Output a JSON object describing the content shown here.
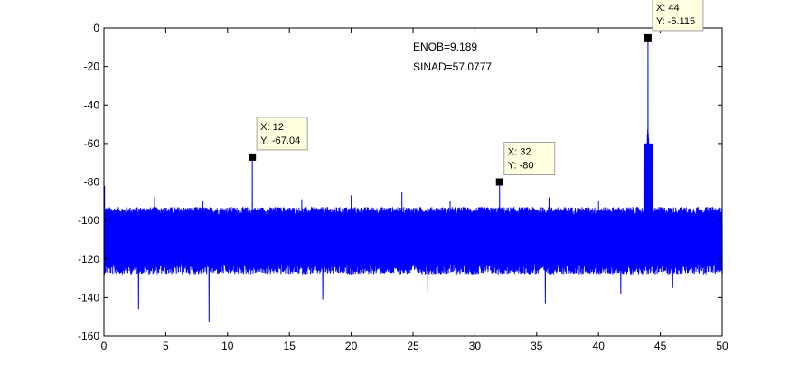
{
  "chart_data": {
    "type": "line",
    "xlim": [
      0,
      50
    ],
    "ylim": [
      -160,
      0
    ],
    "xticks": [
      0,
      5,
      10,
      15,
      20,
      25,
      30,
      35,
      40,
      45,
      50
    ],
    "yticks": [
      0,
      -20,
      -40,
      -60,
      -80,
      -100,
      -120,
      -140,
      -160
    ],
    "grid": false,
    "line_color": "#0000ff",
    "noise_floor": {
      "mean": -110,
      "upper": -97,
      "lower": -122
    },
    "annotations": [
      {
        "text": "ENOB=9.189"
      },
      {
        "text": "SINAD=57.0777"
      }
    ],
    "datatips": [
      {
        "x": 12,
        "y": -67.04,
        "x_label": "X: 12",
        "y_label": "Y: -67.04"
      },
      {
        "x": 32,
        "y": -80,
        "x_label": "X: 32",
        "y_label": "Y: -80"
      },
      {
        "x": 44,
        "y": -5.115,
        "x_label": "X: 44",
        "y_label": "Y: -5.115"
      }
    ],
    "spikes": [
      {
        "x": 0.05,
        "y": -82
      },
      {
        "x": 4.1,
        "y": -88
      },
      {
        "x": 8.0,
        "y": -90
      },
      {
        "x": 12,
        "y": -67.04
      },
      {
        "x": 16.0,
        "y": -89
      },
      {
        "x": 20.0,
        "y": -87
      },
      {
        "x": 24.1,
        "y": -85
      },
      {
        "x": 28.0,
        "y": -90
      },
      {
        "x": 32,
        "y": -80
      },
      {
        "x": 36.0,
        "y": -88
      },
      {
        "x": 40.0,
        "y": -90
      },
      {
        "x": 44,
        "y": -5.115
      },
      {
        "x": 48.0,
        "y": -93
      }
    ],
    "dips": [
      {
        "x": 2.8,
        "y": -146
      },
      {
        "x": 8.5,
        "y": -153
      },
      {
        "x": 17.7,
        "y": -141
      },
      {
        "x": 26.2,
        "y": -138
      },
      {
        "x": 35.7,
        "y": -143
      },
      {
        "x": 41.8,
        "y": -138
      },
      {
        "x": 46.0,
        "y": -135
      }
    ]
  }
}
